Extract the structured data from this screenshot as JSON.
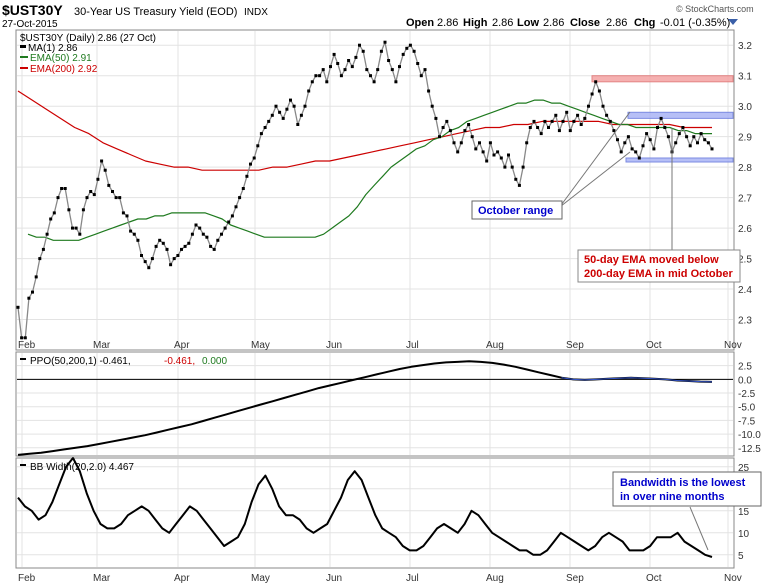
{
  "header": {
    "symbol": "$UST30Y",
    "name": "30-Year US Treasury Yield (EOD)",
    "exchange": "INDX",
    "date": "27-Oct-2015",
    "copyright": "© StockCharts.com",
    "open_label": "Open",
    "open": "2.86",
    "high_label": "High",
    "high": "2.86",
    "low_label": "Low",
    "low": "2.86",
    "close_label": "Close",
    "close": "2.86",
    "chg_label": "Chg",
    "chg": "-0.01 (-0.35%)"
  },
  "colors": {
    "price": "#000000",
    "price_line": "#888888",
    "ema50": "#1f7a1f",
    "ema200": "#cc0000",
    "zone_red": "#f4a3a3",
    "zone_blue": "#aab4f5",
    "grid": "#e3e3e3",
    "note_blue": "#0000cc",
    "note_red": "#cc0000"
  },
  "chart_data": [
    {
      "type": "line",
      "panel": "price",
      "legend": {
        "title": "$UST30Y (Daily) 2.86 (27 Oct)",
        "ma1": "MA(1) 2.86",
        "ema50": "EMA(50) 2.91",
        "ema200": "EMA(200) 2.92"
      },
      "x_labels": [
        "Feb",
        "Mar",
        "Apr",
        "May",
        "Jun",
        "Jul",
        "Aug",
        "Sep",
        "Oct",
        "Nov"
      ],
      "y_ticks": [
        "2.3",
        "2.4",
        "2.5",
        "2.6",
        "2.7",
        "2.8",
        "2.9",
        "3.0",
        "3.1",
        "3.2"
      ],
      "ylim": [
        2.2,
        3.25
      ],
      "series": [
        {
          "name": "MA(1)",
          "values": [
            2.34,
            2.24,
            2.24,
            2.37,
            2.39,
            2.44,
            2.5,
            2.53,
            2.58,
            2.63,
            2.65,
            2.7,
            2.73,
            2.73,
            2.66,
            2.6,
            2.6,
            2.58,
            2.66,
            2.7,
            2.72,
            2.71,
            2.76,
            2.82,
            2.79,
            2.74,
            2.72,
            2.7,
            2.7,
            2.65,
            2.64,
            2.59,
            2.58,
            2.56,
            2.51,
            2.49,
            2.47,
            2.5,
            2.54,
            2.56,
            2.55,
            2.53,
            2.48,
            2.5,
            2.51,
            2.53,
            2.54,
            2.55,
            2.58,
            2.61,
            2.6,
            2.58,
            2.57,
            2.54,
            2.53,
            2.56,
            2.58,
            2.6,
            2.62,
            2.64,
            2.67,
            2.7,
            2.73,
            2.77,
            2.81,
            2.83,
            2.87,
            2.91,
            2.93,
            2.95,
            2.97,
            3.0,
            2.98,
            2.96,
            2.99,
            3.02,
            3.0,
            2.94,
            2.97,
            3.0,
            3.05,
            3.08,
            3.1,
            3.1,
            3.12,
            3.08,
            3.13,
            3.17,
            3.14,
            3.1,
            3.12,
            3.15,
            3.13,
            3.16,
            3.2,
            3.18,
            3.12,
            3.1,
            3.08,
            3.12,
            3.18,
            3.21,
            3.15,
            3.12,
            3.08,
            3.13,
            3.17,
            3.19,
            3.2,
            3.18,
            3.14,
            3.1,
            3.12,
            3.05,
            3.0,
            2.96,
            2.9,
            2.93,
            2.95,
            2.92,
            2.88,
            2.85,
            2.88,
            2.92,
            2.94,
            2.9,
            2.86,
            2.88,
            2.85,
            2.82,
            2.88,
            2.84,
            2.85,
            2.83,
            2.8,
            2.84,
            2.8,
            2.76,
            2.74,
            2.8,
            2.88,
            2.93,
            2.95,
            2.93,
            2.91,
            2.95,
            2.93,
            2.95,
            2.97,
            2.92,
            2.95,
            2.98,
            2.92,
            2.95,
            2.97,
            2.94,
            2.96,
            3.0,
            3.04,
            3.08,
            3.05,
            3.0,
            2.97,
            2.95,
            2.92,
            2.89,
            2.85,
            2.88,
            2.9,
            2.86,
            2.85,
            2.83,
            2.87,
            2.91,
            2.89,
            2.86,
            2.93,
            2.96,
            2.93,
            2.9,
            2.85,
            2.88,
            2.91,
            2.93,
            2.9,
            2.87,
            2.9,
            2.88,
            2.91,
            2.89,
            2.88,
            2.86
          ]
        },
        {
          "name": "EMA(50)",
          "values": [
            2.58,
            2.57,
            2.57,
            2.56,
            2.56,
            2.56,
            2.56,
            2.57,
            2.58,
            2.59,
            2.6,
            2.61,
            2.62,
            2.63,
            2.63,
            2.64,
            2.64,
            2.65,
            2.65,
            2.65,
            2.65,
            2.65,
            2.64,
            2.63,
            2.61,
            2.6,
            2.59,
            2.58,
            2.57,
            2.57,
            2.57,
            2.57,
            2.57,
            2.57,
            2.57,
            2.58,
            2.6,
            2.62,
            2.64,
            2.67,
            2.71,
            2.74,
            2.77,
            2.8,
            2.82,
            2.84,
            2.86,
            2.87,
            2.89,
            2.9,
            2.92,
            2.93,
            2.95,
            2.96,
            2.97,
            2.98,
            2.99,
            3.0,
            3.01,
            3.01,
            3.02,
            3.02,
            3.01,
            3.01,
            3.0,
            2.99,
            2.98,
            2.97,
            2.96,
            2.95,
            2.94,
            2.94,
            2.93,
            2.93,
            2.93,
            2.93,
            2.93,
            2.92,
            2.92,
            2.91,
            2.91,
            2.91
          ],
          "x_start": 6
        },
        {
          "name": "EMA(200)",
          "values": [
            3.05,
            3.02,
            2.99,
            2.96,
            2.93,
            2.91,
            2.88,
            2.86,
            2.84,
            2.82,
            2.81,
            2.8,
            2.8,
            2.79,
            2.79,
            2.79,
            2.79,
            2.79,
            2.8,
            2.8,
            2.81,
            2.82,
            2.82,
            2.83,
            2.84,
            2.85,
            2.86,
            2.87,
            2.88,
            2.89,
            2.9,
            2.91,
            2.92,
            2.93,
            2.93,
            2.94,
            2.94,
            2.95,
            2.95,
            2.95,
            2.95,
            2.95,
            2.94,
            2.94,
            2.94,
            2.94,
            2.94,
            2.93,
            2.93,
            2.93
          ],
          "x_start": 0
        }
      ],
      "zones": [
        {
          "from": 3.08,
          "to": 3.1,
          "color": "red"
        },
        {
          "from": 2.96,
          "to": 2.98,
          "color": "blue"
        },
        {
          "from": 2.82,
          "to": 2.83,
          "color": "blue"
        }
      ],
      "annotations": {
        "october_range": "October range",
        "ema_cross_1": "50-day EMA moved below",
        "ema_cross_2": "200-day EMA in mid October"
      }
    },
    {
      "type": "line",
      "panel": "ppo",
      "legend": {
        "title": "PPO(50,200,1) -0.461,",
        "value2": "-0.461,",
        "value3": "0.000"
      },
      "y_ticks": [
        "2.5",
        "0.0",
        "-2.5",
        "-5.0",
        "-7.5",
        "-10.0",
        "-12.5"
      ],
      "ylim": [
        -14,
        5
      ],
      "values": [
        -13.8,
        -13.6,
        -13.4,
        -13.1,
        -12.8,
        -12.5,
        -12.2,
        -11.8,
        -11.4,
        -11.0,
        -10.6,
        -10.2,
        -9.7,
        -9.2,
        -8.7,
        -8.2,
        -7.6,
        -7.0,
        -6.4,
        -5.8,
        -5.2,
        -4.6,
        -4.0,
        -3.4,
        -2.8,
        -2.2,
        -1.6,
        -1.1,
        -0.6,
        -0.1,
        0.4,
        0.9,
        1.4,
        1.9,
        2.3,
        2.6,
        2.9,
        3.1,
        3.2,
        3.3,
        3.2,
        3.0,
        2.7,
        2.3,
        1.8,
        1.3,
        0.8,
        0.3,
        0.0,
        -0.1,
        0.0,
        0.1,
        0.2,
        0.3,
        0.2,
        0.1,
        0.0,
        -0.2,
        -0.3,
        -0.4,
        -0.46
      ],
      "zero_line": 0.0
    },
    {
      "type": "line",
      "panel": "bbwidth",
      "legend": {
        "title": "BB Width(20,2.0) 4.467"
      },
      "y_ticks": [
        "25",
        "20",
        "15",
        "10",
        "5"
      ],
      "ylim": [
        2,
        27
      ],
      "values": [
        18,
        16,
        15,
        13,
        14,
        17,
        21,
        25,
        27,
        24,
        19,
        15,
        12,
        11,
        11,
        12,
        14,
        15,
        16,
        15,
        13,
        11,
        10,
        12,
        14,
        16,
        15,
        13,
        11,
        9,
        7,
        8,
        9,
        12,
        17,
        21,
        23,
        20,
        16,
        14,
        14,
        13,
        11,
        10,
        11,
        12,
        15,
        18,
        22,
        24,
        22,
        18,
        14,
        11,
        10,
        9,
        7,
        6,
        6,
        7,
        9,
        11,
        12,
        11,
        10,
        12,
        15,
        14,
        12,
        10,
        9,
        8,
        7,
        6,
        6,
        5,
        5,
        6,
        8,
        10,
        9,
        8,
        7,
        6,
        7,
        9,
        10,
        9,
        8,
        6,
        6,
        6,
        7,
        9,
        9,
        9,
        10,
        8,
        7,
        6,
        5,
        4.5
      ],
      "annotations": {
        "bandwidth_1": "Bandwidth is the lowest",
        "bandwidth_2": "in over nine months"
      }
    }
  ]
}
